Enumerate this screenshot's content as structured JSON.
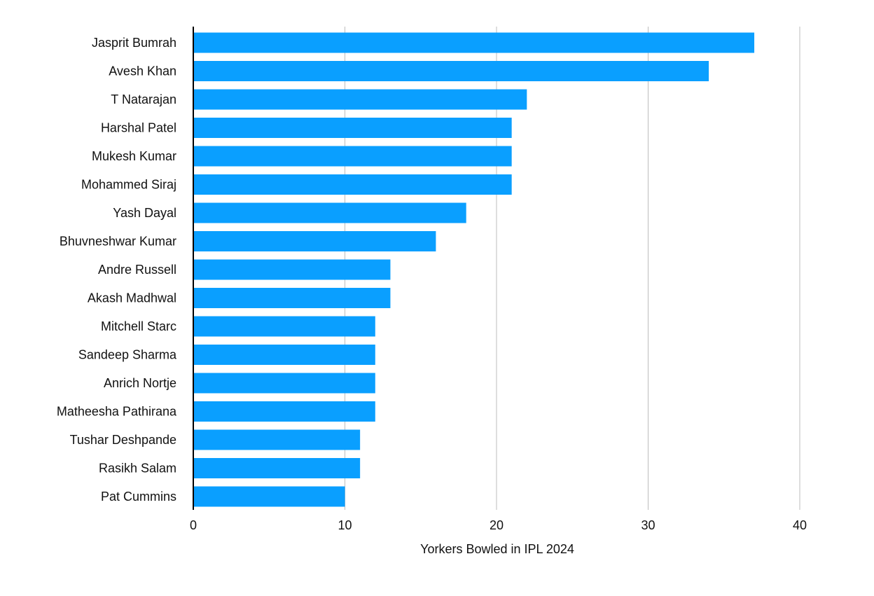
{
  "chart_data": {
    "type": "bar",
    "orientation": "horizontal",
    "title": "",
    "xlabel": "Yorkers Bowled in IPL 2024",
    "ylabel": "",
    "xlim": [
      0,
      40
    ],
    "x_ticks": [
      0,
      10,
      20,
      30,
      40
    ],
    "grid": "vertical",
    "legend": "none",
    "categories": [
      "Jasprit Bumrah",
      "Avesh Khan",
      "T Natarajan",
      "Harshal Patel",
      "Mukesh Kumar",
      "Mohammed Siraj",
      "Yash Dayal",
      "Bhuvneshwar Kumar",
      "Andre Russell",
      "Akash Madhwal",
      "Mitchell Starc",
      "Sandeep Sharma",
      "Anrich Nortje",
      "Matheesha Pathirana",
      "Tushar Deshpande",
      "Rasikh Salam",
      "Pat Cummins"
    ],
    "values": [
      37,
      34,
      22,
      21,
      21,
      21,
      18,
      16,
      13,
      13,
      12,
      12,
      12,
      12,
      11,
      11,
      10
    ],
    "bar_color": "#0A9FFF",
    "grid_color": "#BDBDBD",
    "axis_color": "#000000"
  }
}
